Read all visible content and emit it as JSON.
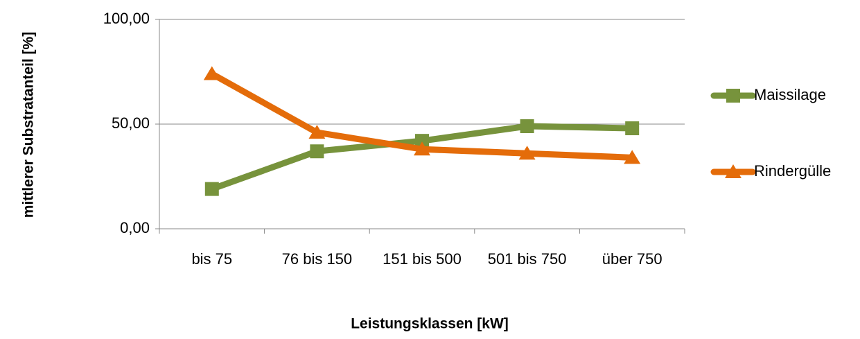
{
  "chart_data": {
    "type": "line",
    "xlabel": "Leistungsklassen [kW]",
    "ylabel": "mittlerer  Substratanteil [%]",
    "categories": [
      "bis 75",
      "76 bis 150",
      "151 bis 500",
      "501 bis 750",
      "über 750"
    ],
    "series": [
      {
        "name": "Maissilage",
        "color": "#77933c",
        "marker": "square",
        "values": [
          19,
          37,
          42,
          49,
          48
        ]
      },
      {
        "name": "Rindergülle",
        "color": "#e46c0a",
        "marker": "triangle",
        "values": [
          74,
          46,
          38,
          36,
          34
        ]
      }
    ],
    "ylim": [
      0,
      100
    ],
    "yticks": [
      {
        "value": 0,
        "label": "0,00"
      },
      {
        "value": 50,
        "label": "50,00"
      },
      {
        "value": 100,
        "label": "100,00"
      }
    ],
    "grid": true,
    "legend": "right"
  }
}
